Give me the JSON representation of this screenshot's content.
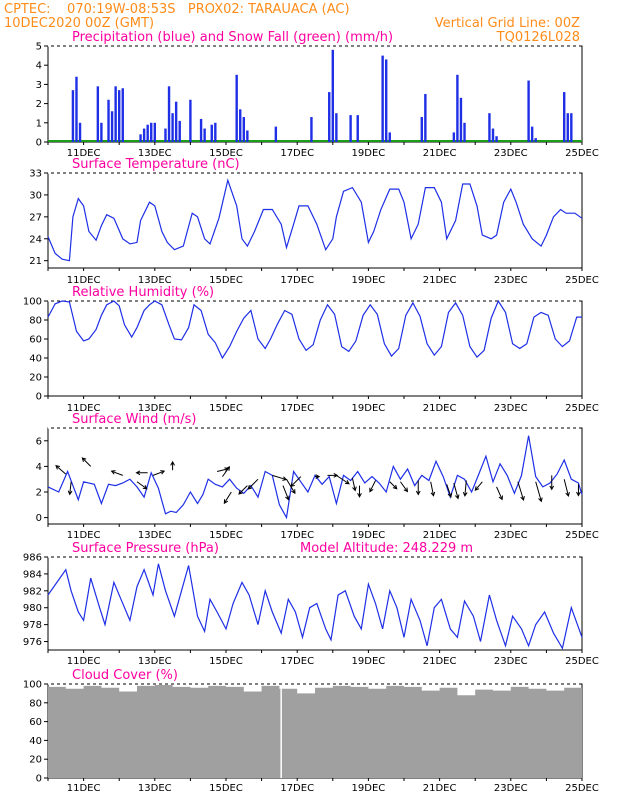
{
  "header": {
    "line1_left": "CPTEC:    070:19W-08:53S   PROX02: TARAUACA (AC)",
    "line2_left": "10DEC2020 00Z (GMT)",
    "line2_right": "Vertical Grid Line: 00Z",
    "line3_right": "TQ0126L028"
  },
  "colors": {
    "header": "#ff8c1a",
    "title": "#ff00a0",
    "line": "#1e2fe6",
    "rain": "#1e2fe6",
    "snow": "#1a9e1a",
    "cloud": "#a0a0a0",
    "arrow": "#000000"
  },
  "chart_data": [
    {
      "type": "bar",
      "id": "precip",
      "title": "Precipitation (blue) and Snow Fall (green) (mm/h)",
      "ylim": [
        0,
        5
      ],
      "yticks": [
        0,
        1,
        2,
        3,
        4,
        5
      ],
      "xticks": [
        "11DEC",
        "13DEC",
        "15DEC",
        "17DEC",
        "19DEC",
        "21DEC",
        "23DEC",
        "25DEC"
      ],
      "x": [
        0.7,
        0.8,
        0.9,
        1.4,
        1.5,
        1.7,
        1.8,
        1.9,
        2.0,
        2.1,
        2.6,
        2.7,
        2.8,
        2.9,
        3.0,
        3.3,
        3.4,
        3.5,
        3.6,
        3.7,
        4.0,
        4.3,
        4.4,
        4.6,
        4.7,
        5.3,
        5.4,
        5.5,
        5.6,
        6.4,
        7.4,
        7.9,
        8.0,
        8.1,
        8.5,
        8.7,
        9.4,
        9.5,
        9.6,
        10.5,
        10.6,
        11.4,
        11.5,
        11.6,
        11.7,
        12.4,
        12.5,
        12.6,
        13.5,
        13.6,
        13.7,
        14.5,
        14.6,
        14.7
      ],
      "values": [
        2.7,
        3.4,
        1.0,
        2.9,
        1.0,
        2.2,
        1.6,
        2.9,
        2.7,
        2.8,
        0.4,
        0.7,
        0.9,
        1.0,
        1.0,
        0.7,
        2.9,
        1.5,
        2.1,
        1.1,
        2.2,
        1.2,
        0.7,
        0.9,
        1.0,
        3.5,
        1.7,
        1.3,
        0.6,
        0.8,
        1.3,
        2.6,
        4.8,
        1.5,
        1.4,
        1.4,
        4.5,
        4.3,
        0.5,
        1.3,
        2.5,
        0.5,
        3.5,
        2.3,
        1.0,
        1.5,
        0.7,
        0.3,
        3.2,
        0.8,
        0.2,
        2.6,
        1.5,
        1.5
      ],
      "snow": 0
    },
    {
      "type": "line",
      "id": "temp",
      "title": "Surface Temperature (nC)",
      "ylim": [
        20,
        33
      ],
      "yticks": [
        21,
        24,
        27,
        30,
        33
      ],
      "xticks": [
        "11DEC",
        "13DEC",
        "15DEC",
        "17DEC",
        "19DEC",
        "21DEC",
        "23DEC",
        "25DEC"
      ],
      "x": [
        0,
        0.2,
        0.4,
        0.6,
        0.7,
        0.85,
        1.0,
        1.15,
        1.35,
        1.5,
        1.65,
        1.85,
        2.1,
        2.3,
        2.5,
        2.6,
        2.85,
        3.0,
        3.2,
        3.35,
        3.55,
        3.8,
        4.05,
        4.2,
        4.4,
        4.55,
        4.8,
        5.05,
        5.3,
        5.45,
        5.6,
        5.8,
        6.05,
        6.3,
        6.55,
        6.7,
        6.9,
        7.05,
        7.3,
        7.55,
        7.8,
        8.0,
        8.1,
        8.3,
        8.55,
        8.8,
        9.0,
        9.15,
        9.35,
        9.6,
        9.85,
        10.0,
        10.2,
        10.4,
        10.6,
        10.85,
        11.05,
        11.2,
        11.45,
        11.65,
        11.85,
        12.05,
        12.2,
        12.45,
        12.6,
        12.8,
        13.0,
        13.15,
        13.35,
        13.6,
        13.85,
        14.0,
        14.2,
        14.4,
        14.55,
        14.8,
        15.0
      ],
      "values": [
        24.3,
        22.0,
        21.2,
        21.0,
        27.0,
        29.5,
        28.5,
        25.0,
        23.8,
        25.8,
        27.3,
        26.8,
        24.0,
        23.3,
        23.5,
        26.5,
        29.0,
        28.5,
        25.0,
        23.5,
        22.5,
        23.0,
        27.5,
        27.0,
        24.0,
        23.3,
        26.8,
        32.0,
        28.5,
        24.0,
        23.0,
        25.0,
        28.0,
        28.0,
        26.0,
        22.8,
        26.0,
        28.5,
        28.5,
        26.0,
        22.5,
        24.0,
        27.0,
        30.5,
        31.0,
        29.0,
        23.5,
        25.0,
        28.0,
        30.8,
        30.8,
        29.0,
        24.0,
        26.0,
        31.0,
        31.0,
        29.0,
        24.0,
        26.5,
        31.5,
        31.5,
        28.5,
        24.5,
        24.0,
        24.5,
        29.0,
        30.8,
        29.0,
        26.0,
        24.0,
        23.0,
        24.5,
        27.0,
        28.0,
        27.5,
        27.5,
        26.8
      ]
    },
    {
      "type": "line",
      "id": "rh",
      "title": "Relative Humidity (%)",
      "ylim": [
        0,
        100
      ],
      "yticks": [
        0,
        20,
        40,
        60,
        80,
        100
      ],
      "xticks": [
        "11DEC",
        "13DEC",
        "15DEC",
        "17DEC",
        "19DEC",
        "21DEC",
        "23DEC",
        "25DEC"
      ],
      "x": [
        0,
        0.2,
        0.4,
        0.6,
        0.8,
        1.0,
        1.15,
        1.35,
        1.5,
        1.65,
        1.85,
        2.0,
        2.15,
        2.35,
        2.5,
        2.7,
        2.85,
        3.0,
        3.2,
        3.4,
        3.55,
        3.75,
        3.95,
        4.1,
        4.3,
        4.5,
        4.7,
        4.9,
        5.1,
        5.3,
        5.5,
        5.7,
        5.9,
        6.1,
        6.25,
        6.45,
        6.65,
        6.85,
        7.05,
        7.25,
        7.45,
        7.65,
        7.85,
        8.05,
        8.25,
        8.45,
        8.65,
        8.85,
        9.05,
        9.25,
        9.45,
        9.65,
        9.85,
        10.05,
        10.25,
        10.45,
        10.65,
        10.85,
        11.05,
        11.25,
        11.45,
        11.65,
        11.85,
        12.05,
        12.25,
        12.45,
        12.65,
        12.85,
        13.05,
        13.25,
        13.45,
        13.65,
        13.85,
        14.05,
        14.25,
        14.45,
        14.65,
        14.85,
        15.0
      ],
      "values": [
        83,
        97,
        100,
        99,
        68,
        58,
        60,
        70,
        85,
        96,
        100,
        95,
        75,
        62,
        72,
        90,
        96,
        100,
        96,
        75,
        60,
        59,
        72,
        96,
        90,
        65,
        56,
        40,
        52,
        68,
        82,
        90,
        60,
        50,
        60,
        76,
        90,
        86,
        60,
        48,
        54,
        80,
        96,
        86,
        52,
        47,
        58,
        85,
        96,
        86,
        55,
        42,
        50,
        85,
        98,
        84,
        55,
        43,
        52,
        88,
        98,
        85,
        52,
        41,
        48,
        82,
        100,
        88,
        55,
        50,
        55,
        83,
        88,
        85,
        60,
        52,
        58,
        83,
        83
      ]
    },
    {
      "type": "line",
      "id": "wind",
      "title": "Surface Wind (m/s)",
      "ylim": [
        -0.5,
        7
      ],
      "yticks": [
        0,
        2,
        4,
        6
      ],
      "xticks": [
        "11DEC",
        "13DEC",
        "15DEC",
        "17DEC",
        "19DEC",
        "21DEC",
        "23DEC",
        "25DEC"
      ],
      "x": [
        0,
        0.3,
        0.55,
        0.7,
        0.85,
        1.0,
        1.3,
        1.5,
        1.7,
        1.9,
        2.1,
        2.3,
        2.5,
        2.7,
        2.9,
        3.1,
        3.3,
        3.45,
        3.6,
        3.8,
        4.0,
        4.2,
        4.35,
        4.5,
        4.7,
        4.9,
        5.1,
        5.3,
        5.5,
        5.7,
        5.9,
        6.1,
        6.3,
        6.5,
        6.7,
        6.9,
        7.1,
        7.3,
        7.5,
        7.7,
        7.9,
        8.1,
        8.3,
        8.5,
        8.7,
        8.9,
        9.1,
        9.3,
        9.5,
        9.7,
        9.9,
        10.1,
        10.3,
        10.5,
        10.7,
        10.9,
        11.1,
        11.3,
        11.5,
        11.7,
        11.9,
        12.1,
        12.3,
        12.5,
        12.7,
        12.9,
        13.1,
        13.3,
        13.5,
        13.7,
        13.9,
        14.1,
        14.3,
        14.5,
        14.7,
        14.9,
        15.0
      ],
      "values": [
        2.4,
        2.0,
        3.6,
        2.5,
        1.4,
        2.8,
        2.6,
        1.1,
        2.6,
        2.5,
        2.7,
        3.0,
        2.4,
        1.6,
        3.5,
        2.3,
        0.3,
        0.5,
        0.4,
        1.0,
        2.0,
        1.1,
        1.8,
        3.0,
        2.6,
        2.4,
        3.0,
        2.3,
        1.9,
        2.5,
        1.6,
        3.6,
        3.3,
        1.0,
        0.0,
        3.6,
        2.8,
        2.0,
        3.3,
        2.6,
        3.2,
        1.1,
        3.3,
        2.9,
        3.6,
        2.7,
        3.2,
        2.7,
        2.0,
        4.0,
        3.0,
        3.8,
        2.5,
        3.3,
        2.9,
        4.4,
        3.2,
        1.6,
        3.3,
        3.0,
        2.0,
        3.4,
        4.8,
        2.8,
        4.2,
        3.3,
        1.9,
        3.3,
        6.4,
        3.2,
        2.4,
        2.7,
        3.4,
        4.5,
        3.0,
        2.7,
        1.8
      ],
      "arrows": [
        {
          "x": 0.5,
          "y": 3.4,
          "u": -0.7,
          "v": 0.6
        },
        {
          "x": 0.65,
          "y": 2.8,
          "u": -0.1,
          "v": -0.9
        },
        {
          "x": 1.2,
          "y": 4.0,
          "u": -0.6,
          "v": 0.6
        },
        {
          "x": 2.1,
          "y": 3.3,
          "u": -0.8,
          "v": 0.3
        },
        {
          "x": 2.5,
          "y": 2.8,
          "u": 0.7,
          "v": -0.5
        },
        {
          "x": 2.8,
          "y": 3.5,
          "u": -0.8,
          "v": 0.0
        },
        {
          "x": 2.95,
          "y": 3.3,
          "u": 0.8,
          "v": 0.3
        },
        {
          "x": 3.5,
          "y": 3.7,
          "u": 0.0,
          "v": 0.6
        },
        {
          "x": 4.75,
          "y": 3.6,
          "u": 0.8,
          "v": 0.2
        },
        {
          "x": 4.9,
          "y": 3.2,
          "u": 0.5,
          "v": 0.7
        },
        {
          "x": 5.15,
          "y": 2.0,
          "u": -0.5,
          "v": -0.8
        },
        {
          "x": 5.6,
          "y": 2.5,
          "u": -0.6,
          "v": -0.6
        },
        {
          "x": 5.9,
          "y": 3.0,
          "u": -0.7,
          "v": -0.7
        },
        {
          "x": 6.3,
          "y": 3.3,
          "u": 1.0,
          "v": -0.3
        },
        {
          "x": 6.6,
          "y": 2.5,
          "u": 0.4,
          "v": -1.0
        },
        {
          "x": 6.7,
          "y": 3.0,
          "u": 0.6,
          "v": -1.0
        },
        {
          "x": 7.1,
          "y": 3.2,
          "u": -0.7,
          "v": -0.7
        },
        {
          "x": 7.5,
          "y": 3.2,
          "u": 0.3,
          "v": 0.0
        },
        {
          "x": 7.85,
          "y": 3.3,
          "u": 0.7,
          "v": 0.0
        },
        {
          "x": 8.1,
          "y": 3.3,
          "u": 0.9,
          "v": -0.6
        },
        {
          "x": 8.55,
          "y": 3.1,
          "u": 0.2,
          "v": -0.9
        },
        {
          "x": 8.75,
          "y": 2.5,
          "u": 0.0,
          "v": -0.8
        },
        {
          "x": 9.2,
          "y": 2.9,
          "u": -0.4,
          "v": -0.8
        },
        {
          "x": 9.6,
          "y": 2.8,
          "u": 0.5,
          "v": -0.5
        },
        {
          "x": 9.9,
          "y": 2.8,
          "u": 0.5,
          "v": -0.7
        },
        {
          "x": 10.4,
          "y": 2.9,
          "u": 0.0,
          "v": -1.0
        },
        {
          "x": 10.75,
          "y": 2.8,
          "u": 0.2,
          "v": -1.0
        },
        {
          "x": 11.2,
          "y": 2.6,
          "u": 0.3,
          "v": -0.9
        },
        {
          "x": 11.4,
          "y": 2.7,
          "u": 0.3,
          "v": -1.1
        },
        {
          "x": 11.75,
          "y": 2.9,
          "u": -0.1,
          "v": -1.1
        },
        {
          "x": 12.2,
          "y": 2.8,
          "u": -0.5,
          "v": -0.6
        },
        {
          "x": 12.6,
          "y": 2.4,
          "u": 0.4,
          "v": -0.9
        },
        {
          "x": 13.2,
          "y": 2.8,
          "u": 0.4,
          "v": -1.3
        },
        {
          "x": 13.7,
          "y": 2.8,
          "u": 0.4,
          "v": -1.4
        },
        {
          "x": 14.15,
          "y": 3.3,
          "u": 0.0,
          "v": -1.0
        },
        {
          "x": 14.5,
          "y": 3.0,
          "u": 0.3,
          "v": -1.2
        },
        {
          "x": 14.9,
          "y": 2.6,
          "u": 0.0,
          "v": -0.8
        }
      ]
    },
    {
      "type": "line",
      "id": "pres",
      "title": "Surface Pressure (hPa)",
      "subtitle": "Model Altitude: 248.229  m",
      "ylim": [
        975,
        986
      ],
      "yticks": [
        976,
        978,
        980,
        982,
        984,
        986
      ],
      "xticks": [
        "11DEC",
        "13DEC",
        "15DEC",
        "17DEC",
        "19DEC",
        "21DEC",
        "23DEC",
        "25DEC"
      ],
      "x": [
        0,
        0.25,
        0.5,
        0.65,
        0.85,
        1.0,
        1.2,
        1.45,
        1.6,
        1.85,
        2.05,
        2.3,
        2.5,
        2.7,
        2.95,
        3.1,
        3.3,
        3.55,
        3.75,
        3.95,
        4.2,
        4.4,
        4.55,
        4.75,
        5.0,
        5.2,
        5.45,
        5.65,
        5.9,
        6.1,
        6.3,
        6.55,
        6.75,
        6.95,
        7.15,
        7.35,
        7.55,
        7.8,
        7.95,
        8.15,
        8.35,
        8.6,
        8.8,
        9.0,
        9.2,
        9.4,
        9.6,
        9.8,
        10.0,
        10.2,
        10.45,
        10.65,
        10.85,
        11.05,
        11.3,
        11.5,
        11.7,
        11.95,
        12.15,
        12.4,
        12.6,
        12.85,
        13.05,
        13.3,
        13.5,
        13.7,
        13.95,
        14.2,
        14.45,
        14.7,
        15.0
      ],
      "values": [
        981.5,
        983.0,
        984.5,
        982.0,
        979.5,
        978.5,
        983.5,
        980.0,
        978.0,
        983.0,
        981.0,
        978.5,
        982.5,
        984.5,
        981.5,
        985.2,
        982.0,
        979.0,
        982.0,
        985.0,
        979.0,
        977.2,
        981.0,
        979.5,
        977.5,
        980.5,
        983.0,
        981.5,
        978.0,
        982.0,
        979.5,
        977.0,
        981.0,
        979.5,
        976.5,
        980.0,
        980.5,
        977.5,
        976.2,
        981.5,
        982.0,
        979.0,
        977.5,
        982.8,
        980.5,
        977.5,
        982.0,
        980.0,
        976.5,
        981.0,
        978.5,
        975.5,
        980.0,
        981.0,
        977.5,
        976.5,
        980.8,
        979.0,
        976.0,
        981.5,
        978.5,
        975.5,
        979.0,
        977.5,
        975.5,
        978.0,
        979.5,
        977.0,
        975.2,
        980.0,
        976.5
      ]
    },
    {
      "type": "bar",
      "id": "cloud",
      "title": "Cloud Cover (%)",
      "ylim": [
        0,
        100
      ],
      "yticks": [
        0,
        20,
        40,
        60,
        80,
        100
      ],
      "xticks": [
        "11DEC",
        "13DEC",
        "15DEC",
        "17DEC",
        "19DEC",
        "21DEC",
        "23DEC",
        "25DEC"
      ],
      "x": [
        0,
        0.5,
        1.0,
        1.5,
        2.0,
        2.5,
        3.0,
        3.5,
        4.0,
        4.5,
        5.0,
        5.5,
        6.0,
        6.5,
        7.0,
        7.5,
        8.0,
        8.5,
        9.0,
        9.5,
        10.0,
        10.5,
        11.0,
        11.5,
        12.0,
        12.5,
        13.0,
        13.5,
        14.0,
        14.5
      ],
      "values": [
        97,
        95,
        98,
        96,
        92,
        98,
        99,
        97,
        96,
        98,
        97,
        92,
        98,
        95,
        90,
        96,
        98,
        97,
        95,
        98,
        97,
        93,
        96,
        88,
        94,
        93,
        97,
        95,
        93,
        96
      ]
    }
  ]
}
